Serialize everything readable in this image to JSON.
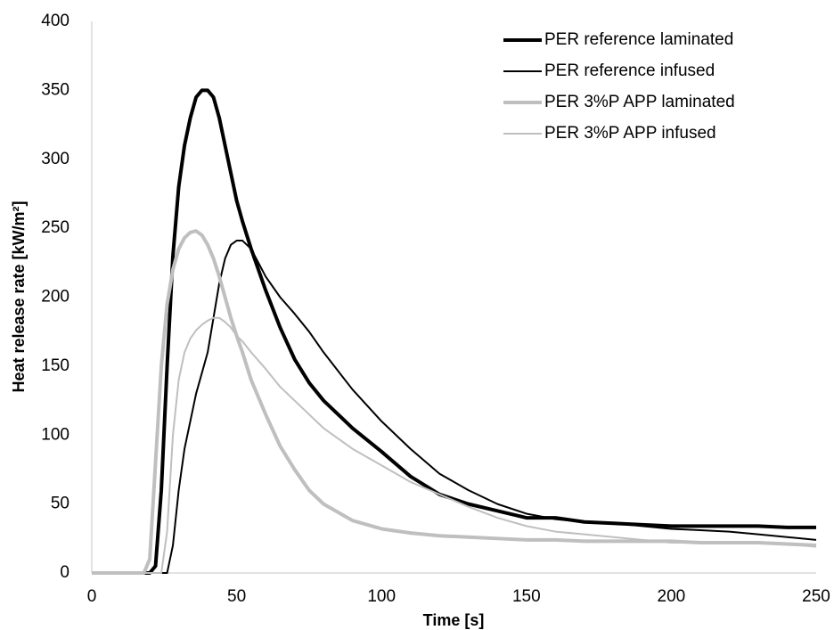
{
  "chart_data": {
    "type": "line",
    "xlabel": "Time [s]",
    "ylabel": "Heat release rate [kW/m²]",
    "x": [
      0,
      10,
      18,
      20,
      22,
      24,
      26,
      28,
      30,
      32,
      34,
      36,
      38,
      40,
      42,
      44,
      46,
      48,
      50,
      52,
      55,
      60,
      65,
      70,
      75,
      80,
      90,
      100,
      110,
      120,
      130,
      140,
      150,
      160,
      170,
      180,
      190,
      200,
      210,
      220,
      230,
      240,
      250
    ],
    "series": [
      {
        "name": "PER reference laminated",
        "color": "#000000",
        "width": 4,
        "values": [
          0,
          0,
          0,
          0,
          5,
          60,
          150,
          230,
          280,
          310,
          330,
          345,
          350,
          350,
          345,
          330,
          310,
          290,
          270,
          255,
          235,
          205,
          178,
          155,
          138,
          125,
          105,
          88,
          70,
          57,
          50,
          45,
          40,
          40,
          37,
          36,
          35,
          34,
          34,
          34,
          34,
          33,
          33
        ]
      },
      {
        "name": "PER reference infused",
        "color": "#000000",
        "width": 2,
        "values": [
          0,
          0,
          0,
          0,
          0,
          0,
          0,
          20,
          60,
          90,
          110,
          130,
          145,
          160,
          185,
          210,
          228,
          238,
          241,
          241,
          235,
          215,
          200,
          188,
          175,
          160,
          133,
          110,
          90,
          72,
          60,
          50,
          43,
          39,
          37,
          36,
          34,
          32,
          31,
          30,
          28,
          26,
          24
        ]
      },
      {
        "name": "PER 3%P APP laminated",
        "color": "#bfbfbf",
        "width": 4,
        "values": [
          0,
          0,
          0,
          10,
          80,
          150,
          195,
          220,
          235,
          243,
          247,
          248,
          245,
          238,
          228,
          215,
          200,
          185,
          172,
          160,
          140,
          115,
          92,
          75,
          60,
          50,
          38,
          32,
          29,
          27,
          26,
          25,
          24,
          24,
          23,
          23,
          23,
          23,
          22,
          22,
          22,
          21,
          20
        ]
      },
      {
        "name": "PER 3%P APP infused",
        "color": "#bfbfbf",
        "width": 2,
        "values": [
          0,
          0,
          0,
          0,
          0,
          0,
          30,
          100,
          140,
          160,
          170,
          176,
          180,
          183,
          185,
          185,
          182,
          178,
          172,
          168,
          160,
          148,
          135,
          125,
          115,
          105,
          90,
          78,
          66,
          57,
          48,
          40,
          34,
          30,
          28,
          26,
          24,
          22,
          22,
          22,
          22,
          21,
          19
        ]
      }
    ],
    "xlim": [
      0,
      250
    ],
    "xticks": [
      0,
      50,
      100,
      150,
      200,
      250
    ],
    "ylim": [
      0,
      400
    ],
    "yticks": [
      0,
      50,
      100,
      150,
      200,
      250,
      300,
      350,
      400
    ],
    "grid": false,
    "legend": "upper right"
  }
}
